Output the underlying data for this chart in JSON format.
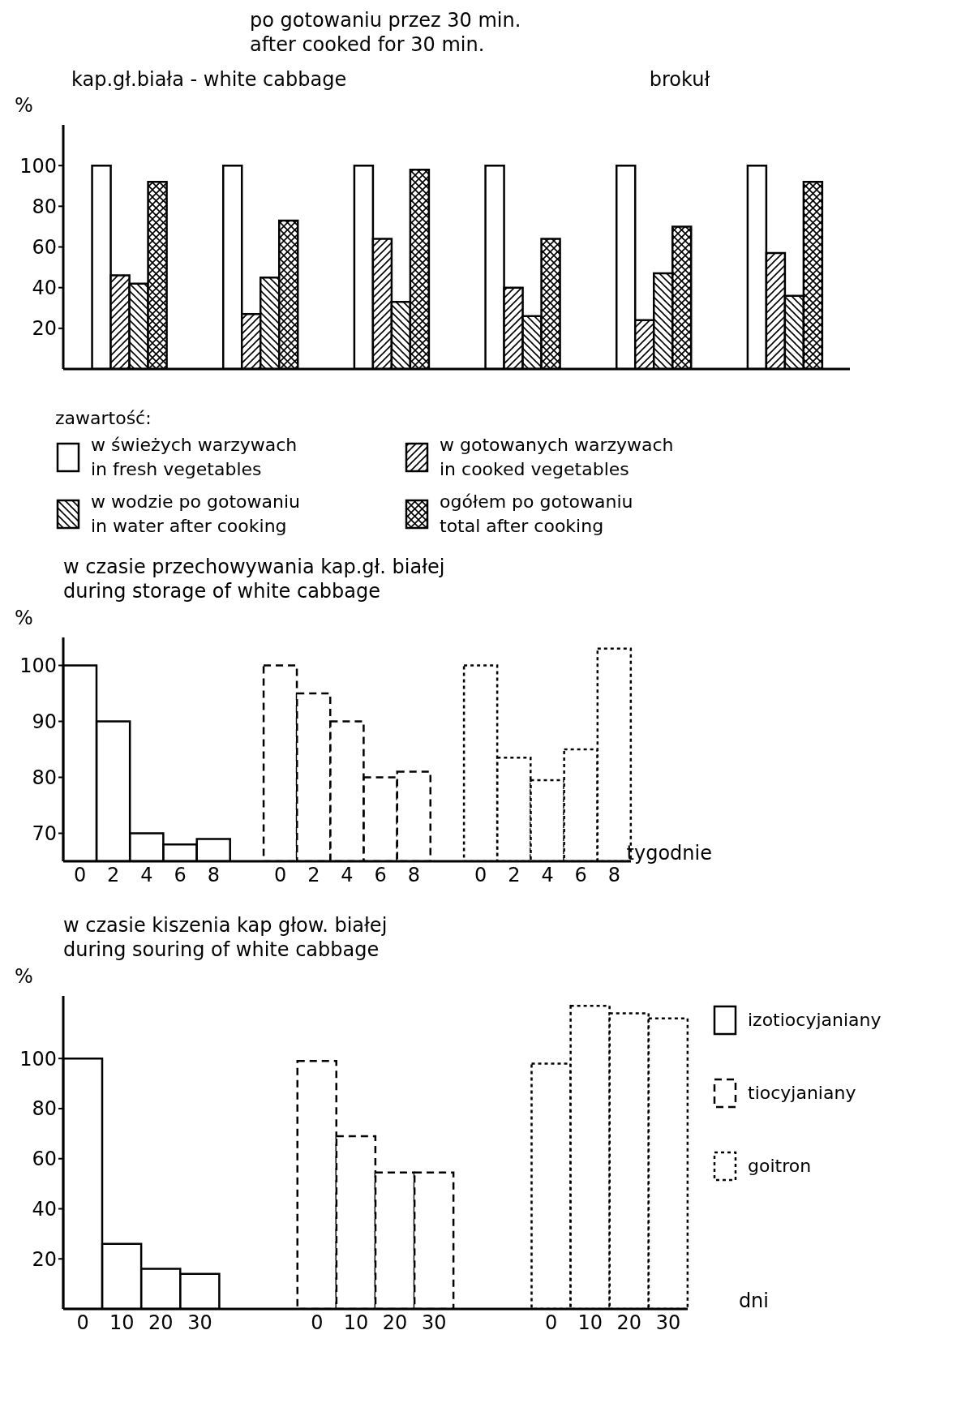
{
  "chart_data": [
    {
      "type": "bar",
      "title": "po gotowaniu przez 30 min.\nafter cooked for 30 min.",
      "ylabel": "%",
      "annotations": [
        "kap.gł.biała - white cabbage",
        "brokuł"
      ],
      "categories": [
        null,
        null,
        null,
        null,
        null,
        null
      ],
      "legend": "bottom",
      "legend_title": "zawartość:",
      "ylim": [
        0,
        120
      ],
      "yticks": [
        20,
        40,
        60,
        80,
        100
      ],
      "series": [
        {
          "name": "w świeżych warzywach\nin fresh vegetables",
          "color": "#000000",
          "values": [
            100,
            100,
            100,
            100,
            100,
            100
          ]
        },
        {
          "name": "w gotowanych warzywach\nin cooked vegetables",
          "color": "#000000",
          "values": [
            46,
            27,
            64,
            40,
            24,
            57
          ]
        },
        {
          "name": "w wodzie po gotowaniu\nin water after cooking",
          "color": "#000000",
          "values": [
            42,
            45,
            33,
            26,
            47,
            36
          ]
        },
        {
          "name": "ogółem po gotowaniu\ntotal after cooking",
          "color": "#000000",
          "values": [
            92,
            73,
            98,
            64,
            70,
            92
          ]
        }
      ]
    },
    {
      "type": "bar",
      "title": "w czasie przechowywania kap.gł. białej\nduring storage of white cabbage",
      "ylabel": "%",
      "xlabel": "tygodnie",
      "categories": [
        "0",
        "2",
        "4",
        "6",
        "8",
        null,
        "0",
        "2",
        "4",
        "6",
        "8",
        null,
        "0",
        "2",
        "4",
        "6",
        "8"
      ],
      "stacked": true,
      "ylim": [
        65,
        105
      ],
      "yticks": [
        70,
        80,
        90,
        100
      ],
      "series": [
        {
          "color": "#000000",
          "line_style": "solid",
          "values": [
            100,
            90,
            70,
            68,
            69,
            null,
            null,
            null,
            null,
            null,
            null,
            null,
            null,
            null,
            null,
            null,
            null
          ]
        },
        {
          "color": "#000000",
          "line_style": "dashed",
          "values": [
            null,
            null,
            null,
            null,
            null,
            null,
            100,
            95,
            90,
            80,
            81,
            null,
            null,
            null,
            null,
            null,
            null
          ]
        },
        {
          "color": "#000000",
          "line_style": "dotted",
          "values": [
            null,
            null,
            null,
            null,
            null,
            null,
            null,
            null,
            null,
            null,
            null,
            null,
            100,
            83.5,
            79.5,
            85,
            103
          ]
        }
      ]
    },
    {
      "type": "bar",
      "title": "w czasie kiszenia kap głow. białej\nduring souring of white cabbage",
      "ylabel": "%",
      "xlabel": "dni",
      "categories": [
        "0",
        "10",
        "20",
        "30",
        null,
        null,
        "0",
        "10",
        "20",
        "30",
        null,
        null,
        "0",
        "10",
        "20",
        "30"
      ],
      "stacked": true,
      "legend": "right",
      "ylim": [
        0,
        125
      ],
      "yticks": [
        20,
        40,
        60,
        80,
        100
      ],
      "series": [
        {
          "name": "izotiocyjaniany",
          "color": "#000000",
          "line_style": "solid",
          "values": [
            100,
            26,
            16,
            14,
            null,
            null,
            null,
            null,
            null,
            null,
            null,
            null,
            null,
            null,
            null,
            null
          ]
        },
        {
          "name": "tiocyjaniany",
          "color": "#000000",
          "line_style": "dashed",
          "values": [
            null,
            null,
            null,
            null,
            null,
            null,
            99,
            69,
            54.5,
            54.5,
            null,
            null,
            null,
            null,
            null,
            null
          ]
        },
        {
          "name": "goitron",
          "color": "#000000",
          "line_style": "dotted",
          "values": [
            null,
            null,
            null,
            null,
            null,
            null,
            null,
            null,
            null,
            null,
            null,
            null,
            98,
            121,
            118,
            116
          ]
        }
      ]
    }
  ]
}
